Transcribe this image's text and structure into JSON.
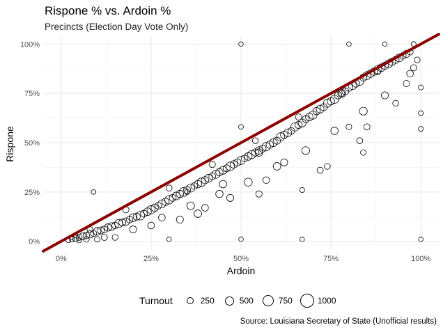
{
  "chart_data": {
    "type": "scatter",
    "title": "Rispone % vs. Ardoin %",
    "subtitle": "Precincts (Election Day Vote Only)",
    "xlabel": "Ardoin",
    "ylabel": "Rispone",
    "xlim": [
      -0.05,
      1.05
    ],
    "ylim": [
      -0.04,
      1.04
    ],
    "x_ticks": [
      0,
      0.25,
      0.5,
      0.75,
      1.0
    ],
    "x_tick_labels": [
      "0%",
      "25%",
      "50%",
      "75%",
      "100%"
    ],
    "y_ticks": [
      0,
      0.25,
      0.5,
      0.75,
      1.0
    ],
    "y_tick_labels": [
      "0%",
      "25%",
      "50%",
      "75%",
      "100%"
    ],
    "grid": true,
    "reference_line": {
      "slope": 1,
      "intercept": 0,
      "color": "#8b0000"
    },
    "size_legend": {
      "title": "Turnout",
      "breaks": [
        250,
        500,
        750,
        1000
      ],
      "labels": [
        "250",
        "500",
        "750",
        "1000"
      ],
      "placement": "bottom"
    },
    "points": [
      [
        0.02,
        0.005,
        150
      ],
      [
        0.03,
        0.01,
        200
      ],
      [
        0.04,
        0.015,
        320
      ],
      [
        0.05,
        0.02,
        280
      ],
      [
        0.06,
        0.025,
        400
      ],
      [
        0.07,
        0.03,
        350
      ],
      [
        0.08,
        0.035,
        450
      ],
      [
        0.09,
        0.04,
        300
      ],
      [
        0.1,
        0.05,
        500
      ],
      [
        0.11,
        0.055,
        420
      ],
      [
        0.12,
        0.06,
        380
      ],
      [
        0.13,
        0.07,
        460
      ],
      [
        0.14,
        0.075,
        520
      ],
      [
        0.15,
        0.08,
        340
      ],
      [
        0.16,
        0.09,
        600
      ],
      [
        0.17,
        0.095,
        410
      ],
      [
        0.18,
        0.1,
        480
      ],
      [
        0.19,
        0.11,
        360
      ],
      [
        0.2,
        0.12,
        550
      ],
      [
        0.21,
        0.125,
        430
      ],
      [
        0.22,
        0.13,
        700
      ],
      [
        0.23,
        0.14,
        390
      ],
      [
        0.24,
        0.15,
        520
      ],
      [
        0.25,
        0.16,
        610
      ],
      [
        0.26,
        0.17,
        450
      ],
      [
        0.27,
        0.18,
        380
      ],
      [
        0.28,
        0.19,
        560
      ],
      [
        0.29,
        0.2,
        470
      ],
      [
        0.3,
        0.21,
        650
      ],
      [
        0.31,
        0.22,
        400
      ],
      [
        0.32,
        0.23,
        530
      ],
      [
        0.33,
        0.24,
        480
      ],
      [
        0.34,
        0.25,
        720
      ],
      [
        0.35,
        0.26,
        410
      ],
      [
        0.36,
        0.27,
        590
      ],
      [
        0.37,
        0.28,
        360
      ],
      [
        0.38,
        0.29,
        500
      ],
      [
        0.39,
        0.3,
        640
      ],
      [
        0.4,
        0.31,
        450
      ],
      [
        0.41,
        0.32,
        530
      ],
      [
        0.42,
        0.33,
        380
      ],
      [
        0.43,
        0.34,
        610
      ],
      [
        0.44,
        0.35,
        470
      ],
      [
        0.45,
        0.36,
        560
      ],
      [
        0.46,
        0.37,
        420
      ],
      [
        0.47,
        0.38,
        680
      ],
      [
        0.48,
        0.39,
        500
      ],
      [
        0.49,
        0.4,
        440
      ],
      [
        0.5,
        0.41,
        590
      ],
      [
        0.51,
        0.42,
        370
      ],
      [
        0.52,
        0.43,
        520
      ],
      [
        0.53,
        0.44,
        610
      ],
      [
        0.54,
        0.45,
        460
      ],
      [
        0.55,
        0.46,
        530
      ],
      [
        0.56,
        0.47,
        400
      ],
      [
        0.57,
        0.48,
        650
      ],
      [
        0.58,
        0.49,
        480
      ],
      [
        0.59,
        0.5,
        560
      ],
      [
        0.6,
        0.51,
        420
      ],
      [
        0.61,
        0.53,
        590
      ],
      [
        0.62,
        0.54,
        470
      ],
      [
        0.63,
        0.55,
        530
      ],
      [
        0.64,
        0.56,
        380
      ],
      [
        0.65,
        0.58,
        620
      ],
      [
        0.66,
        0.59,
        450
      ],
      [
        0.67,
        0.6,
        560
      ],
      [
        0.68,
        0.62,
        410
      ],
      [
        0.69,
        0.63,
        520
      ],
      [
        0.7,
        0.64,
        600
      ],
      [
        0.71,
        0.66,
        470
      ],
      [
        0.72,
        0.67,
        540
      ],
      [
        0.73,
        0.68,
        430
      ],
      [
        0.74,
        0.7,
        580
      ],
      [
        0.75,
        0.71,
        490
      ],
      [
        0.76,
        0.72,
        620
      ],
      [
        0.77,
        0.74,
        450
      ],
      [
        0.78,
        0.75,
        560
      ],
      [
        0.79,
        0.76,
        400
      ],
      [
        0.8,
        0.78,
        530
      ],
      [
        0.81,
        0.79,
        610
      ],
      [
        0.82,
        0.8,
        470
      ],
      [
        0.83,
        0.81,
        540
      ],
      [
        0.84,
        0.83,
        420
      ],
      [
        0.85,
        0.84,
        580
      ],
      [
        0.86,
        0.85,
        500
      ],
      [
        0.87,
        0.86,
        460
      ],
      [
        0.88,
        0.87,
        620
      ],
      [
        0.89,
        0.88,
        520
      ],
      [
        0.9,
        0.89,
        430
      ],
      [
        0.91,
        0.9,
        560
      ],
      [
        0.92,
        0.91,
        480
      ],
      [
        0.93,
        0.92,
        400
      ],
      [
        0.94,
        0.93,
        540
      ],
      [
        0.95,
        0.94,
        350
      ],
      [
        0.96,
        0.95,
        420
      ],
      [
        0.97,
        0.96,
        300
      ],
      [
        0.12,
        0.02,
        300
      ],
      [
        0.2,
        0.06,
        420
      ],
      [
        0.28,
        0.12,
        380
      ],
      [
        0.36,
        0.18,
        520
      ],
      [
        0.44,
        0.24,
        460
      ],
      [
        0.52,
        0.3,
        580
      ],
      [
        0.6,
        0.38,
        500
      ],
      [
        0.68,
        0.46,
        540
      ],
      [
        0.76,
        0.56,
        470
      ],
      [
        0.84,
        0.66,
        560
      ],
      [
        0.9,
        0.74,
        420
      ],
      [
        0.08,
        0.06,
        250
      ],
      [
        0.18,
        0.16,
        300
      ],
      [
        0.3,
        0.27,
        280
      ],
      [
        0.42,
        0.39,
        320
      ],
      [
        0.54,
        0.51,
        260
      ],
      [
        0.66,
        0.63,
        300
      ],
      [
        0.78,
        0.75,
        280
      ],
      [
        0.88,
        0.86,
        260
      ],
      [
        0.5,
        1.0,
        120
      ],
      [
        0.8,
        1.0,
        120
      ],
      [
        0.9,
        1.0,
        120
      ],
      [
        0.98,
        1.0,
        150
      ],
      [
        0.09,
        0.25,
        130
      ],
      [
        0.5,
        0.58,
        140
      ],
      [
        0.3,
        0.01,
        120
      ],
      [
        0.5,
        0.01,
        120
      ],
      [
        0.67,
        0.01,
        120
      ],
      [
        1.0,
        0.01,
        120
      ],
      [
        0.35,
        0.25,
        180
      ],
      [
        0.67,
        0.26,
        160
      ],
      [
        1.0,
        0.57,
        150
      ],
      [
        1.0,
        0.65,
        140
      ],
      [
        1.0,
        0.78,
        160
      ],
      [
        0.55,
        0.45,
        500
      ],
      [
        0.62,
        0.4,
        420
      ],
      [
        0.74,
        0.38,
        260
      ],
      [
        0.72,
        0.36,
        300
      ],
      [
        0.84,
        0.45,
        220
      ],
      [
        0.83,
        0.51,
        280
      ],
      [
        0.8,
        0.58,
        240
      ],
      [
        0.57,
        0.31,
        360
      ],
      [
        0.45,
        0.29,
        480
      ],
      [
        0.85,
        0.58,
        300
      ],
      [
        0.93,
        0.7,
        260
      ],
      [
        0.96,
        0.8,
        320
      ],
      [
        0.97,
        0.85,
        360
      ],
      [
        0.98,
        0.88,
        300
      ],
      [
        0.99,
        0.92,
        240
      ],
      [
        0.4,
        0.17,
        380
      ],
      [
        0.47,
        0.22,
        420
      ],
      [
        0.55,
        0.24,
        320
      ],
      [
        0.25,
        0.08,
        380
      ],
      [
        0.33,
        0.11,
        420
      ],
      [
        0.38,
        0.14,
        500
      ],
      [
        0.05,
        0.005,
        180
      ],
      [
        0.1,
        0.01,
        220
      ],
      [
        0.15,
        0.02,
        260
      ],
      [
        0.07,
        0.01,
        240
      ],
      [
        0.04,
        0.03,
        160
      ],
      [
        0.03,
        0.02,
        120
      ]
    ]
  },
  "legend": {
    "title": "Turnout",
    "entries": [
      "250",
      "500",
      "750",
      "1000"
    ]
  },
  "caption": "Source: Louisiana Secretary of State (Unofficial results)"
}
